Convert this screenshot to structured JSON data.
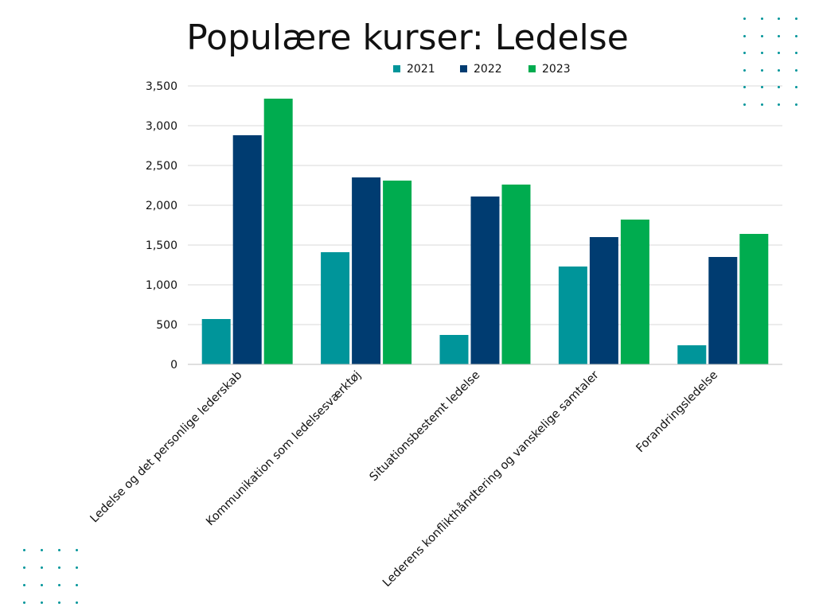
{
  "title": "Populære kurser: Ledelse",
  "colors": {
    "decor_dots": "#00959a",
    "axis_text": "#111111",
    "grid": "#d9d9d9"
  },
  "chart_data": {
    "type": "bar",
    "title": "Populære kurser: Ledelse",
    "xlabel": "",
    "ylabel": "",
    "ylim": [
      0,
      3500
    ],
    "yticks": [
      "0",
      "500",
      "1,000",
      "1,500",
      "2,000",
      "2,500",
      "3,000",
      "3,500"
    ],
    "grid": true,
    "legend_position": "top",
    "categories": [
      "Ledelse og det personlige lederskab",
      "Kommunikation som ledelsesværktøj",
      "Situationsbestemt ledelse",
      "Lederens konflikthåndtering og vanskelige samtaler",
      "Forandringsledelse"
    ],
    "series": [
      {
        "name": "2021",
        "color": "#00959a",
        "values": [
          570,
          1410,
          370,
          1230,
          240
        ]
      },
      {
        "name": "2022",
        "color": "#003c71",
        "values": [
          2880,
          2350,
          2110,
          1600,
          1350
        ]
      },
      {
        "name": "2023",
        "color": "#00ac4f",
        "values": [
          3340,
          2310,
          2260,
          1820,
          1640
        ]
      }
    ]
  }
}
